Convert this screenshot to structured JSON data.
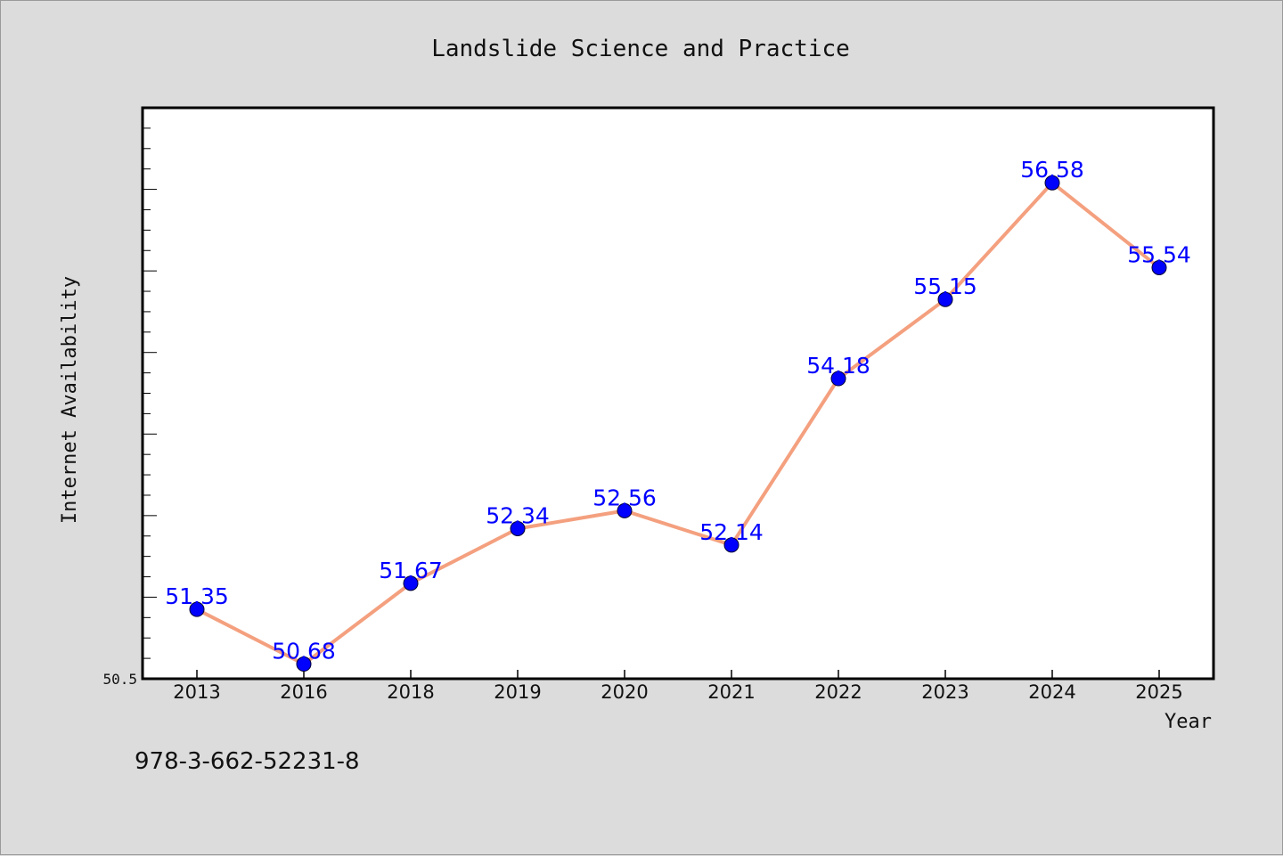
{
  "chart_data": {
    "type": "line",
    "title": "Landslide Science and Practice",
    "xlabel": "Year",
    "ylabel": "Internet Availability",
    "categories": [
      "2013",
      "2016",
      "2018",
      "2019",
      "2020",
      "2021",
      "2022",
      "2023",
      "2024",
      "2025"
    ],
    "series": [
      {
        "values": [
          51.35,
          50.68,
          51.67,
          52.34,
          52.56,
          52.14,
          54.18,
          55.15,
          56.58,
          55.54
        ],
        "labels": [
          "51.35",
          "50.68",
          "51.67",
          "52.34",
          "52.56",
          "52.14",
          "54.18",
          "55.15",
          "56.58",
          "55.54"
        ]
      }
    ],
    "ylim": [
      50.5,
      57.5
    ],
    "yticks_labeled": [
      "50.5"
    ],
    "grid": false,
    "line_color": "#f4a07f",
    "marker_color": "#0000ff",
    "label_color": "#0000ff"
  },
  "footer_text": "978-3-662-52231-8"
}
